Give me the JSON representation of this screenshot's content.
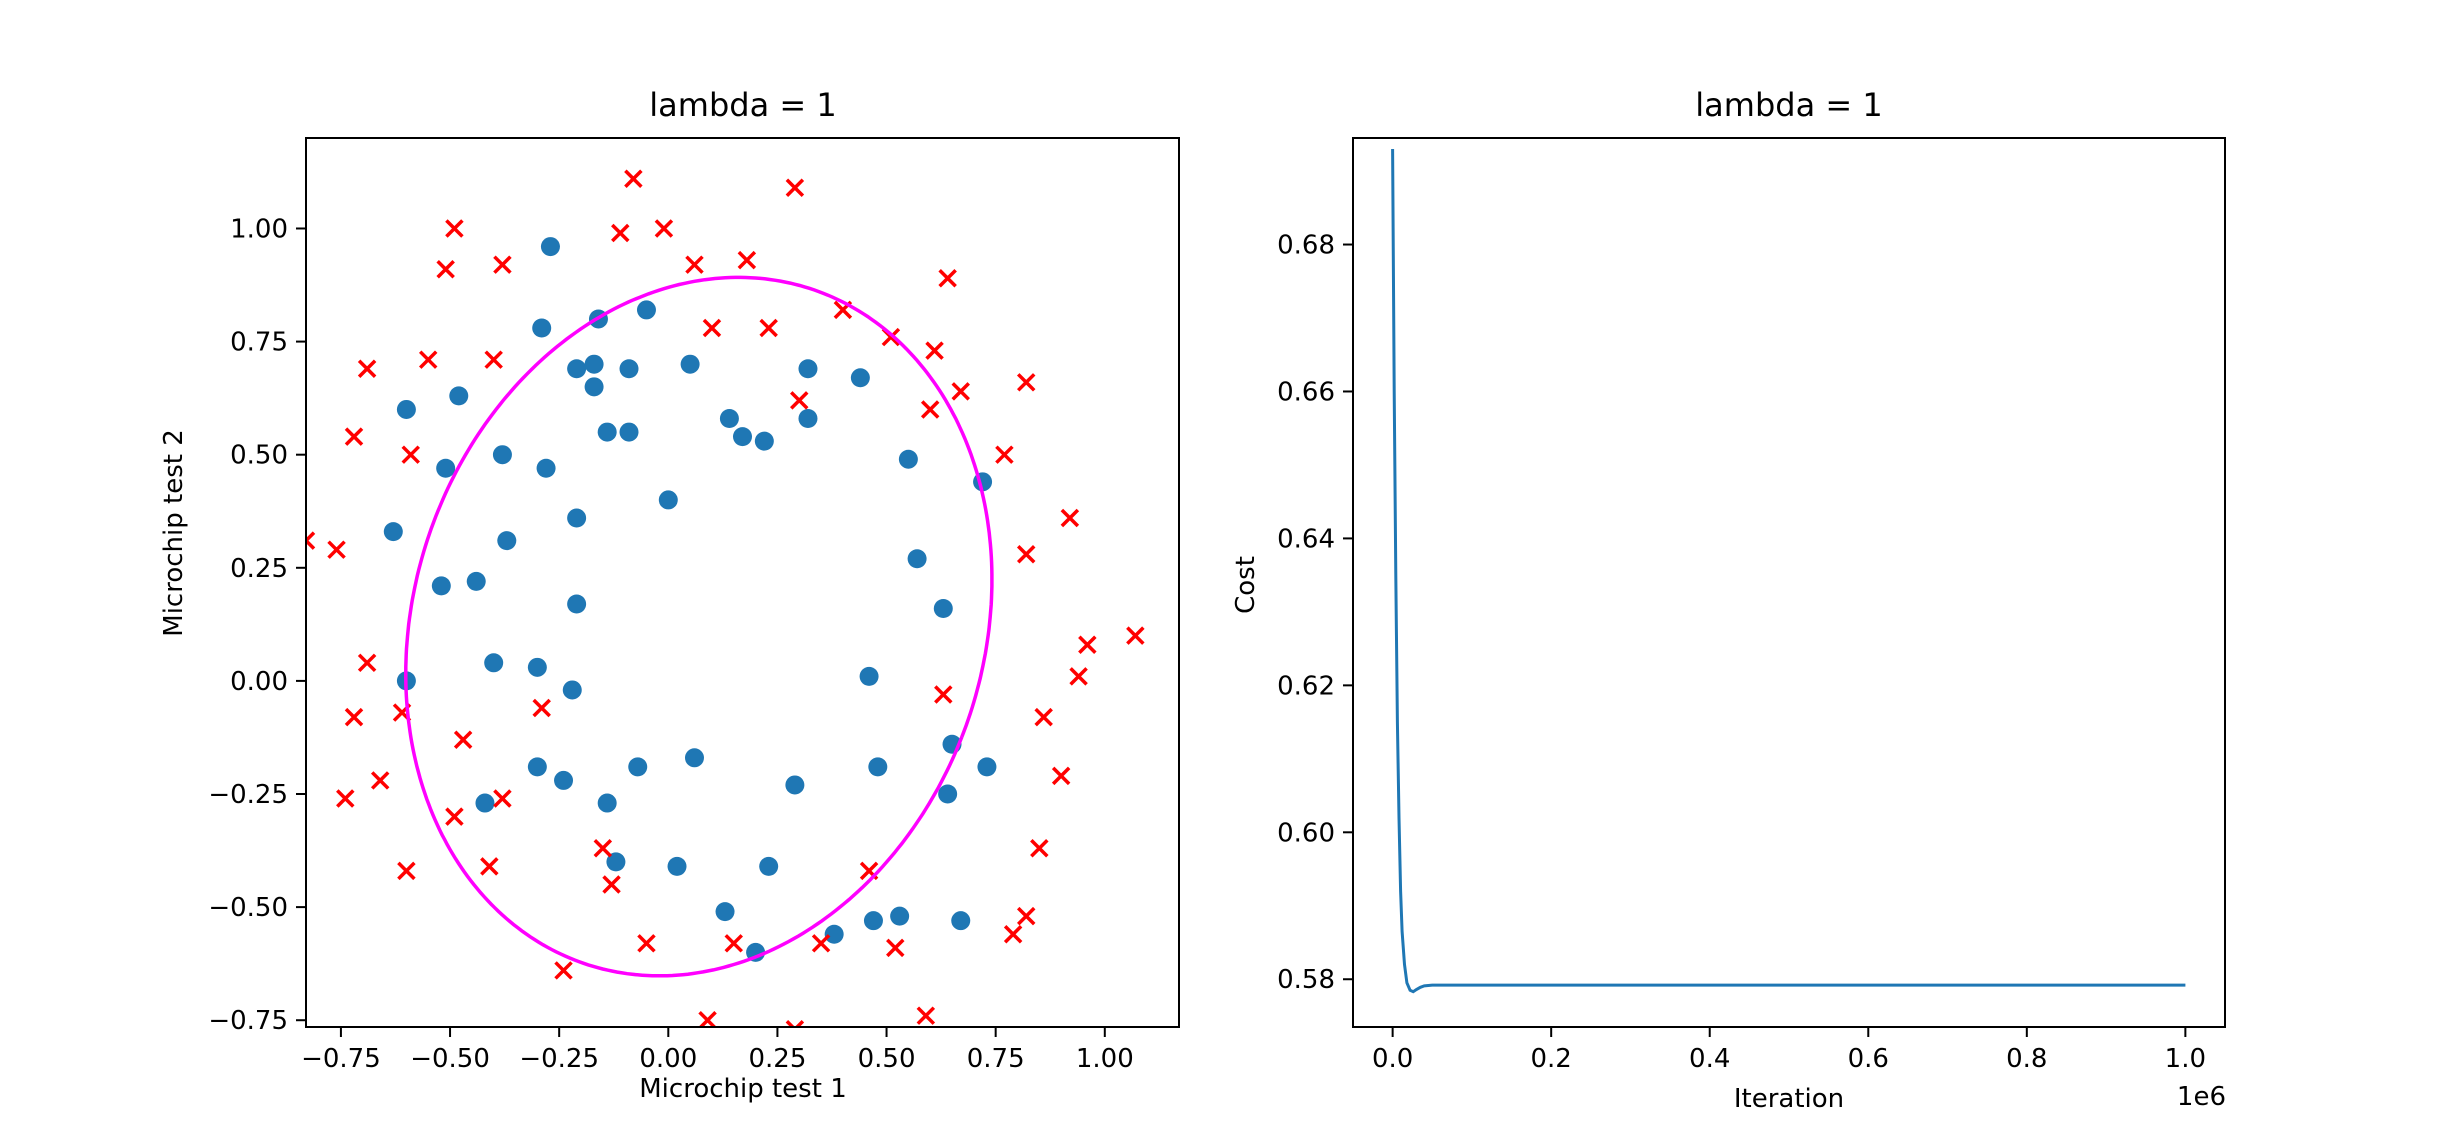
{
  "chart_data": [
    {
      "type": "scatter",
      "title": "lambda = 1",
      "xlabel": "Microchip test 1",
      "ylabel": "Microchip test 2",
      "xlim": [
        -0.83,
        1.17
      ],
      "ylim": [
        -0.765,
        1.2
      ],
      "xticks": [
        -0.75,
        -0.5,
        -0.25,
        0.0,
        0.25,
        0.5,
        0.75,
        1.0
      ],
      "xtick_labels": [
        "−0.75",
        "−0.50",
        "−0.25",
        "0.00",
        "0.25",
        "0.50",
        "0.75",
        "1.00"
      ],
      "yticks": [
        -0.75,
        -0.5,
        -0.25,
        0.0,
        0.25,
        0.5,
        0.75,
        1.0
      ],
      "ytick_labels": [
        "−0.75",
        "−0.50",
        "−0.25",
        "0.00",
        "0.25",
        "0.50",
        "0.75",
        "1.00"
      ],
      "grid": false,
      "colors": {
        "accepted": "#1f77b4",
        "rejected": "#ff0000",
        "boundary": "#ff00ff"
      },
      "series": [
        {
          "marker": "circle",
          "points": [
            [
              -0.27,
              0.96
            ],
            [
              -0.05,
              0.82
            ],
            [
              -0.16,
              0.8
            ],
            [
              -0.29,
              0.78
            ],
            [
              0.05,
              0.7
            ],
            [
              -0.21,
              0.69
            ],
            [
              -0.17,
              0.7
            ],
            [
              -0.09,
              0.69
            ],
            [
              0.32,
              0.69
            ],
            [
              0.44,
              0.67
            ],
            [
              -0.17,
              0.65
            ],
            [
              -0.6,
              0.6
            ],
            [
              -0.48,
              0.63
            ],
            [
              0.14,
              0.58
            ],
            [
              -0.14,
              0.55
            ],
            [
              -0.09,
              0.55
            ],
            [
              0.17,
              0.54
            ],
            [
              0.22,
              0.53
            ],
            [
              0.32,
              0.58
            ],
            [
              0.55,
              0.49
            ],
            [
              -0.38,
              0.5
            ],
            [
              -0.51,
              0.47
            ],
            [
              -0.28,
              0.47
            ],
            [
              0.72,
              0.44
            ],
            [
              0.0,
              0.4
            ],
            [
              -0.21,
              0.36
            ],
            [
              -0.63,
              0.33
            ],
            [
              -0.37,
              0.31
            ],
            [
              0.57,
              0.27
            ],
            [
              -0.52,
              0.21
            ],
            [
              -0.44,
              0.22
            ],
            [
              -0.21,
              0.17
            ],
            [
              0.63,
              0.16
            ],
            [
              -0.4,
              0.04
            ],
            [
              -0.3,
              0.03
            ],
            [
              0.46,
              0.01
            ],
            [
              -0.6,
              0.0
            ],
            [
              -0.22,
              -0.02
            ],
            [
              0.65,
              -0.14
            ],
            [
              0.06,
              -0.17
            ],
            [
              -0.3,
              -0.19
            ],
            [
              0.73,
              -0.19
            ],
            [
              0.48,
              -0.19
            ],
            [
              -0.07,
              -0.19
            ],
            [
              -0.24,
              -0.22
            ],
            [
              0.29,
              -0.23
            ],
            [
              0.64,
              -0.25
            ],
            [
              -0.42,
              -0.27
            ],
            [
              -0.14,
              -0.27
            ],
            [
              -0.12,
              -0.4
            ],
            [
              0.02,
              -0.41
            ],
            [
              0.23,
              -0.41
            ],
            [
              0.13,
              -0.51
            ],
            [
              0.53,
              -0.52
            ],
            [
              0.67,
              -0.53
            ],
            [
              0.47,
              -0.53
            ],
            [
              0.38,
              -0.56
            ],
            [
              0.2,
              -0.6
            ]
          ]
        },
        {
          "marker": "x",
          "points": [
            [
              -0.08,
              1.11
            ],
            [
              0.29,
              1.09
            ],
            [
              -0.49,
              1.0
            ],
            [
              -0.11,
              0.99
            ],
            [
              -0.01,
              1.0
            ],
            [
              -0.51,
              0.91
            ],
            [
              -0.38,
              0.92
            ],
            [
              0.06,
              0.92
            ],
            [
              0.18,
              0.93
            ],
            [
              0.64,
              0.89
            ],
            [
              0.4,
              0.82
            ],
            [
              0.1,
              0.78
            ],
            [
              0.23,
              0.78
            ],
            [
              0.51,
              0.76
            ],
            [
              -0.69,
              0.69
            ],
            [
              -0.55,
              0.71
            ],
            [
              -0.4,
              0.71
            ],
            [
              0.61,
              0.73
            ],
            [
              0.67,
              0.64
            ],
            [
              0.82,
              0.66
            ],
            [
              0.3,
              0.62
            ],
            [
              0.6,
              0.6
            ],
            [
              -0.72,
              0.54
            ],
            [
              -0.59,
              0.5
            ],
            [
              0.77,
              0.5
            ],
            [
              -0.83,
              0.31
            ],
            [
              -0.76,
              0.29
            ],
            [
              0.92,
              0.36
            ],
            [
              0.82,
              0.28
            ],
            [
              -0.69,
              0.04
            ],
            [
              0.96,
              0.08
            ],
            [
              1.07,
              0.1
            ],
            [
              0.94,
              0.01
            ],
            [
              -0.72,
              -0.08
            ],
            [
              -0.61,
              -0.07
            ],
            [
              -0.29,
              -0.06
            ],
            [
              0.63,
              -0.03
            ],
            [
              0.86,
              -0.08
            ],
            [
              -0.47,
              -0.13
            ],
            [
              -0.66,
              -0.22
            ],
            [
              0.9,
              -0.21
            ],
            [
              -0.74,
              -0.26
            ],
            [
              -0.38,
              -0.26
            ],
            [
              -0.49,
              -0.3
            ],
            [
              -0.15,
              -0.37
            ],
            [
              0.85,
              -0.37
            ],
            [
              -0.41,
              -0.41
            ],
            [
              -0.6,
              -0.42
            ],
            [
              0.46,
              -0.42
            ],
            [
              -0.13,
              -0.45
            ],
            [
              0.82,
              -0.52
            ],
            [
              0.79,
              -0.56
            ],
            [
              -0.05,
              -0.58
            ],
            [
              0.15,
              -0.58
            ],
            [
              0.35,
              -0.58
            ],
            [
              0.52,
              -0.59
            ],
            [
              -0.24,
              -0.64
            ],
            [
              0.09,
              -0.75
            ],
            [
              0.29,
              -0.77
            ],
            [
              0.59,
              -0.74
            ]
          ]
        }
      ],
      "decision_boundary": {
        "shape": "ellipse",
        "center": [
          0.07,
          0.12
        ],
        "semi_axes": [
          0.65,
          0.79
        ],
        "rotation_deg": -22
      }
    },
    {
      "type": "line",
      "title": "lambda = 1",
      "xlabel": "Iteration",
      "ylabel": "Cost",
      "x_multiplier_label": "1e6",
      "xlim": [
        -0.05,
        1.05
      ],
      "ylim": [
        0.5735,
        0.6945
      ],
      "xticks": [
        0.0,
        0.2,
        0.4,
        0.6,
        0.8,
        1.0
      ],
      "xtick_labels": [
        "0.0",
        "0.2",
        "0.4",
        "0.6",
        "0.8",
        "1.0"
      ],
      "yticks": [
        0.58,
        0.6,
        0.62,
        0.64,
        0.66,
        0.68
      ],
      "ytick_labels": [
        "0.58",
        "0.60",
        "0.62",
        "0.64",
        "0.66",
        "0.68"
      ],
      "grid": false,
      "colors": {
        "line": "#1f77b4"
      },
      "x": [
        0.0,
        0.002,
        0.004,
        0.006,
        0.008,
        0.01,
        0.012,
        0.015,
        0.018,
        0.022,
        0.026,
        0.03,
        0.035,
        0.04,
        0.05,
        0.1,
        0.2,
        0.4,
        0.6,
        0.8,
        1.0
      ],
      "y": [
        0.693,
        0.66,
        0.635,
        0.615,
        0.602,
        0.592,
        0.5865,
        0.582,
        0.5795,
        0.5785,
        0.5783,
        0.5786,
        0.5789,
        0.5791,
        0.5792,
        0.5792,
        0.5792,
        0.5792,
        0.5792,
        0.5792,
        0.5792
      ]
    }
  ]
}
